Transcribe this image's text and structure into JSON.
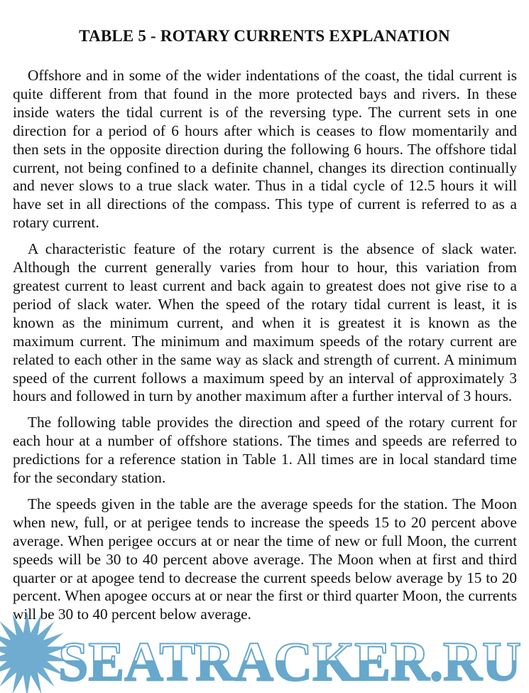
{
  "title": "TABLE 5 - ROTARY CURRENTS EXPLANATION",
  "paragraphs": [
    "Offshore and in some of the wider indentations of the coast, the tidal current is quite different from that found in the more protected bays and rivers. In these inside waters the tidal current is of the reversing type. The current sets in one direction for a period of 6 hours after which is ceases to flow momentarily and then sets in the opposite direction during the following 6 hours. The offshore tidal current, not being confined to a definite channel, changes its direction continually and never slows to a true slack water. Thus in a tidal cycle of 12.5 hours it will have set in all directions of the compass. This type of current is referred to as a rotary current.",
    "A characteristic feature of the rotary current is the absence of slack water. Although the current generally varies from hour to hour, this variation from greatest current to least current and back again to greatest does not give rise to a period of slack water. When the speed of the rotary tidal current is least, it is known as the minimum current, and when it is greatest it is known as the maximum current. The minimum and maximum speeds of the rotary current are related to each other in the same way as slack and strength of current. A minimum speed of the current follows a maximum speed by an interval of approximately 3 hours and followed in turn by another maximum after a further interval of 3 hours.",
    "The following table provides the direction and speed of the rotary current for each hour at a number of offshore stations. The times and speeds are referred to predictions for a reference station in Table 1. All times are in local standard time for the secondary station.",
    "The speeds given in the table are the average speeds for the station. The Moon when new, full, or at perigee tends to increase the speeds 15 to 20 percent above average. When perigee occurs at or near the time of new or full Moon, the current speeds will be 30 to 40 percent above average. The Moon when at first and third quarter or at apogee tend to decrease the current speeds below average by 15 to 20 percent. When apogee occurs at or near the first or third quarter Moon, the currents will be 30 to 40 percent below average."
  ],
  "watermark": {
    "text": "SEATRACKER.RU",
    "color": "#67a8cc",
    "icon": "sun-star-icon"
  }
}
